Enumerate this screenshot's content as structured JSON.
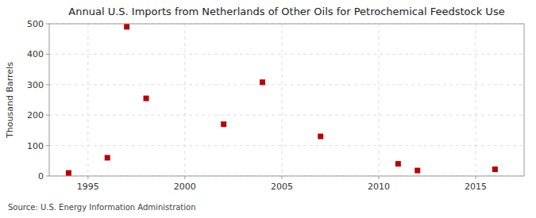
{
  "chart_data": {
    "type": "scatter",
    "title": "Annual U.S. Imports from Netherlands of Other Oils for Petrochemical Feedstock Use",
    "y_label": "Thousand Barrels",
    "annotations": [
      "Source: U.S. Energy Information Administration"
    ],
    "x": [
      1994,
      1996,
      1998,
      1997,
      2002,
      2004,
      2007,
      2011,
      2012,
      2016
    ],
    "values": [
      10,
      60,
      255,
      490,
      170,
      308,
      130,
      40,
      18,
      22
    ],
    "xlim": [
      1993.0,
      2017.5
    ],
    "ylim": [
      0,
      500
    ],
    "xticks": [
      1995,
      2000,
      2005,
      2010,
      2015
    ],
    "yticks": [
      0,
      100,
      200,
      300,
      400,
      500
    ],
    "color": "#bb0000",
    "marker": "square",
    "grid": true
  }
}
